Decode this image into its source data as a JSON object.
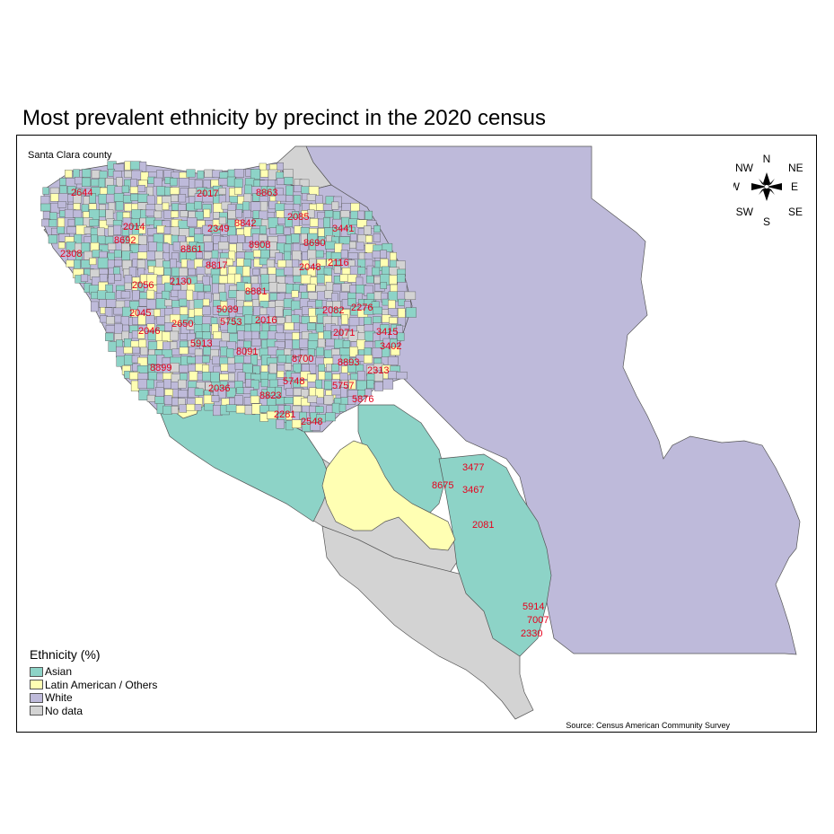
{
  "title": "Most prevalent ethnicity by precinct in the 2020 census",
  "county_label": "Santa Clara county",
  "source": "Source: Census American Community Survey",
  "colors": {
    "Asian": "#8dd3c7",
    "Latin American / Others": "#ffffb3",
    "White": "#bebada",
    "No data": "#d3d3d3"
  },
  "legend": {
    "title": "Ethnicity (%)",
    "items": [
      {
        "label": "Asian",
        "color": "#8dd3c7"
      },
      {
        "label": "Latin American / Others",
        "color": "#ffffb3"
      },
      {
        "label": "White",
        "color": "#bebada"
      },
      {
        "label": "No data",
        "color": "#d3d3d3"
      }
    ]
  },
  "compass": {
    "N": "N",
    "NE": "NE",
    "E": "E",
    "SE": "SE",
    "S": "S",
    "SW": "SW",
    "W": "W",
    "NW": "NW"
  },
  "precinct_labels": [
    "2644",
    "2017",
    "8863",
    "2014",
    "8692",
    "2349",
    "8842",
    "2085",
    "3441",
    "8861",
    "8908",
    "8690",
    "2308",
    "8817",
    "2048",
    "2116",
    "2056",
    "2130",
    "8881",
    "2045",
    "5039",
    "2082",
    "2276",
    "2046",
    "2650",
    "5753",
    "2016",
    "2071",
    "3415",
    "5913",
    "8091",
    "3402",
    "8899",
    "8700",
    "8893",
    "2313",
    "2036",
    "8823",
    "5748",
    "5757",
    "5876",
    "2281",
    "2548",
    "3477",
    "8675",
    "3467",
    "2081",
    "5914",
    "7007",
    "2330"
  ]
}
